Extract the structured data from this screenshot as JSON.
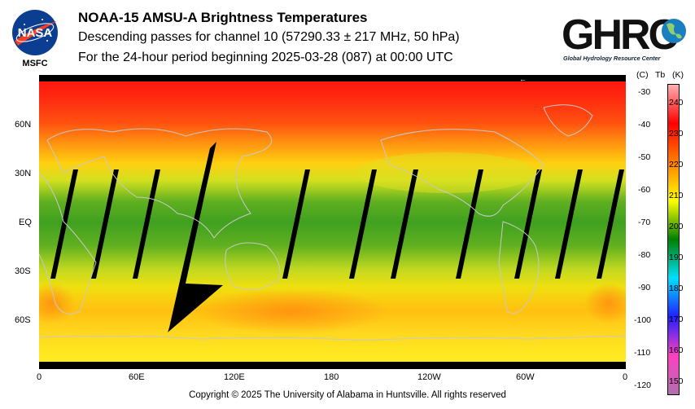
{
  "header": {
    "title": "NOAA-15 AMSU-A Brightness Temperatures",
    "subtitle": "Descending passes for channel 10 (57290.33 ± 217 MHz, 50 hPa)",
    "period": "For the 24-hour period beginning 2025-03-28 (087) at 00:00 UTC"
  },
  "logos": {
    "nasa_text": "NASA",
    "nasa_sub": "MSFC",
    "ghrc_text": "GHRC",
    "ghrc_sub": "Global Hydrology Resource Center"
  },
  "map": {
    "x_ticks": [
      "0",
      "60E",
      "120E",
      "180",
      "120W",
      "60W",
      "0"
    ],
    "y_ticks": [
      "60N",
      "30N",
      "EQ",
      "30S",
      "60S"
    ]
  },
  "colorbar": {
    "header_c": "(C)",
    "header_tb": "Tb",
    "header_k": "(K)",
    "celsius": [
      "-30",
      "-40",
      "-50",
      "-60",
      "-70",
      "-80",
      "-90",
      "-100",
      "-110",
      "-120"
    ],
    "kelvin": [
      "240",
      "230",
      "220",
      "210",
      "200",
      "190",
      "180",
      "170",
      "160",
      "150"
    ],
    "colors": [
      "#b070b0",
      "#ff40c0",
      "#2020ff",
      "#00e0ff",
      "#008000",
      "#ffff00",
      "#ff8000",
      "#ff0000",
      "#ffb0b0"
    ]
  },
  "footer": {
    "copyright": "Copyright © 2025 The University of Alabama in Huntsville.  All rights reserved"
  }
}
